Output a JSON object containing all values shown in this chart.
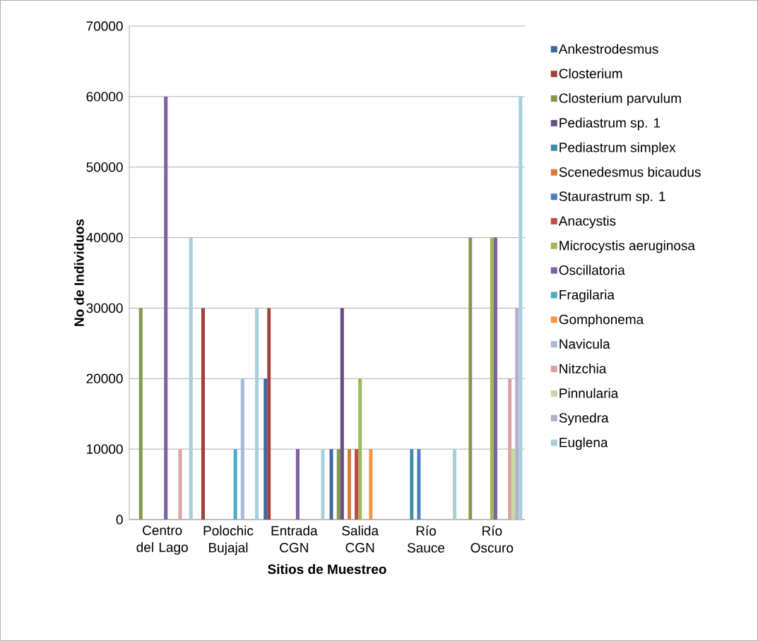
{
  "chart_data": {
    "type": "bar",
    "xlabel": "Sitios de Muestreo",
    "ylabel": "No de Individuos",
    "categories": [
      "Centro del Lago",
      "Polochic Bujajal",
      "Entrada CGN",
      "Salida CGN",
      "Río Sauce",
      "Río Oscuro"
    ],
    "series": [
      {
        "name": "Ankestrodesmus",
        "color": "#3f67a0",
        "values": [
          null,
          null,
          20000,
          10000,
          null,
          null
        ]
      },
      {
        "name": "Closterium",
        "color": "#a0413e",
        "values": [
          null,
          30000,
          30000,
          null,
          null,
          null
        ]
      },
      {
        "name": "Closterium parvulum",
        "color": "#84994b",
        "values": [
          30000,
          null,
          null,
          10000,
          null,
          40000
        ]
      },
      {
        "name": "Pediastrum sp. 1",
        "color": "#694f88",
        "values": [
          null,
          null,
          null,
          30000,
          null,
          null
        ]
      },
      {
        "name": "Pediastrum simplex",
        "color": "#3b8ea5",
        "values": [
          null,
          null,
          null,
          null,
          10000,
          null
        ]
      },
      {
        "name": "Scenedesmus bicaudus",
        "color": "#d47c38",
        "values": [
          null,
          null,
          null,
          10000,
          null,
          null
        ]
      },
      {
        "name": "Staurastrum sp. 1",
        "color": "#4a7ebb",
        "values": [
          null,
          null,
          null,
          null,
          10000,
          null
        ]
      },
      {
        "name": "Anacystis",
        "color": "#be4b48",
        "values": [
          null,
          null,
          null,
          10000,
          null,
          null
        ]
      },
      {
        "name": "Microcystis aeruginosa",
        "color": "#9bbb59",
        "values": [
          null,
          null,
          null,
          20000,
          null,
          40000
        ]
      },
      {
        "name": "Oscillatoria",
        "color": "#7e62a1",
        "values": [
          60000,
          null,
          10000,
          null,
          null,
          40000
        ]
      },
      {
        "name": "Fragilaria",
        "color": "#4bacc6",
        "values": [
          null,
          10000,
          null,
          null,
          null,
          null
        ]
      },
      {
        "name": "Gomphonema",
        "color": "#f79646",
        "values": [
          null,
          null,
          null,
          10000,
          null,
          null
        ]
      },
      {
        "name": "Navicula",
        "color": "#a9b9da",
        "values": [
          null,
          20000,
          null,
          null,
          null,
          null
        ]
      },
      {
        "name": "Nitzchia",
        "color": "#d9a3a2",
        "values": [
          10000,
          null,
          null,
          null,
          null,
          20000
        ]
      },
      {
        "name": "Pinnularia",
        "color": "#c5d9a5",
        "values": [
          null,
          null,
          null,
          null,
          null,
          10000
        ]
      },
      {
        "name": "Synedra",
        "color": "#b8adca",
        "values": [
          null,
          null,
          null,
          null,
          null,
          30000
        ]
      },
      {
        "name": "Euglena",
        "color": "#a6d0dc",
        "values": [
          40000,
          30000,
          10000,
          null,
          10000,
          60000
        ]
      }
    ],
    "ylim": [
      0,
      70000
    ],
    "yticks": [
      0,
      10000,
      20000,
      30000,
      40000,
      50000,
      60000,
      70000
    ],
    "grid": "y",
    "legend": "right"
  }
}
